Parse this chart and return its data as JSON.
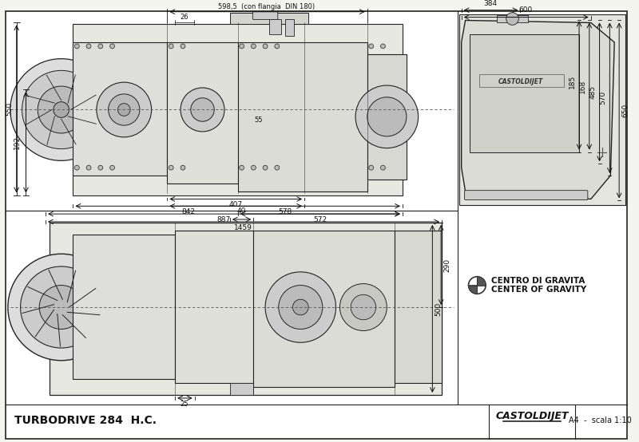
{
  "title": "TURBODRIVE 284  H.C.",
  "scale_text": "A4  -  scala 1:10",
  "brand_text": "CASTOLDIJET",
  "gravity_text_1": "CENTRO DI GRAVITA",
  "gravity_text_2": "CENTER OF GRAVITY",
  "top_dim_text": "598,5  (con flangia  DIN 180)",
  "bg_color": "#f5f5f0",
  "border_color": "#333333",
  "line_color": "#222222",
  "dim_line_color": "#111111",
  "text_color": "#111111",
  "drawing_bg": "#f0f0eb",
  "dims_top_view": {
    "label_26": "26",
    "label_550": "550",
    "label_192": "192",
    "label_407": "407",
    "label_842": "842",
    "label_578": "578",
    "label_887": "887",
    "label_572": "572",
    "label_1459": "1459",
    "label_55": "55"
  },
  "dims_side_view": {
    "label_650": "650",
    "label_570": "570",
    "label_485": "485",
    "label_168": "168",
    "label_185": "185",
    "label_600": "600",
    "label_384": "384"
  },
  "dims_bottom_view": {
    "label_290": "290",
    "label_500": "500",
    "label_25": "25",
    "label_40": "40"
  }
}
